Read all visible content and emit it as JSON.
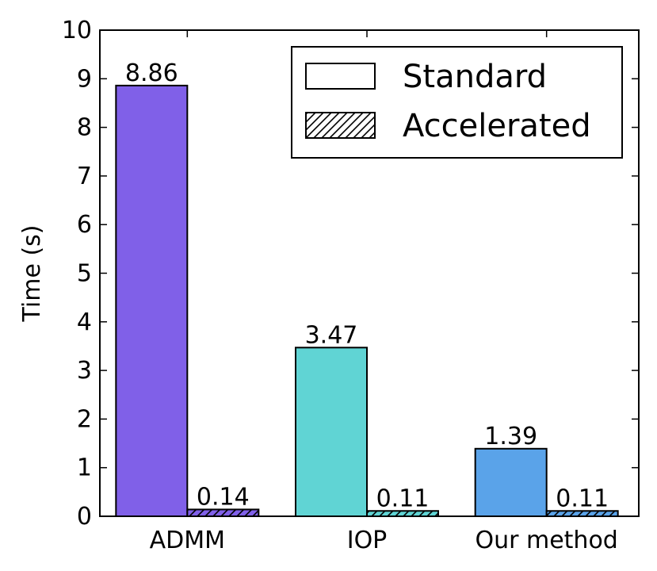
{
  "chart_data": {
    "type": "bar",
    "categories": [
      "ADMM",
      "IOP",
      "Our method"
    ],
    "series": [
      {
        "name": "Standard",
        "values": [
          8.86,
          3.47,
          1.39
        ],
        "value_labels": [
          "8.86",
          "3.47",
          "1.39"
        ],
        "pattern": "solid"
      },
      {
        "name": "Accelerated",
        "values": [
          0.14,
          0.11,
          0.11
        ],
        "value_labels": [
          "0.14",
          "0.11",
          "0.11"
        ],
        "pattern": "hatch"
      }
    ],
    "category_colors": [
      "#8060e8",
      "#60d4d4",
      "#5aa3e9"
    ],
    "title": "",
    "xlabel": "",
    "ylabel": "Time (s)",
    "ylim": [
      0,
      10
    ],
    "yticks": [
      0,
      1,
      2,
      3,
      4,
      5,
      6,
      7,
      8,
      9,
      10
    ],
    "ytick_labels": [
      "0",
      "1",
      "2",
      "3",
      "4",
      "5",
      "6",
      "7",
      "8",
      "9",
      "10"
    ],
    "grid": false,
    "legend": {
      "placement": "top-right",
      "entries": [
        "Standard",
        "Accelerated"
      ]
    }
  }
}
